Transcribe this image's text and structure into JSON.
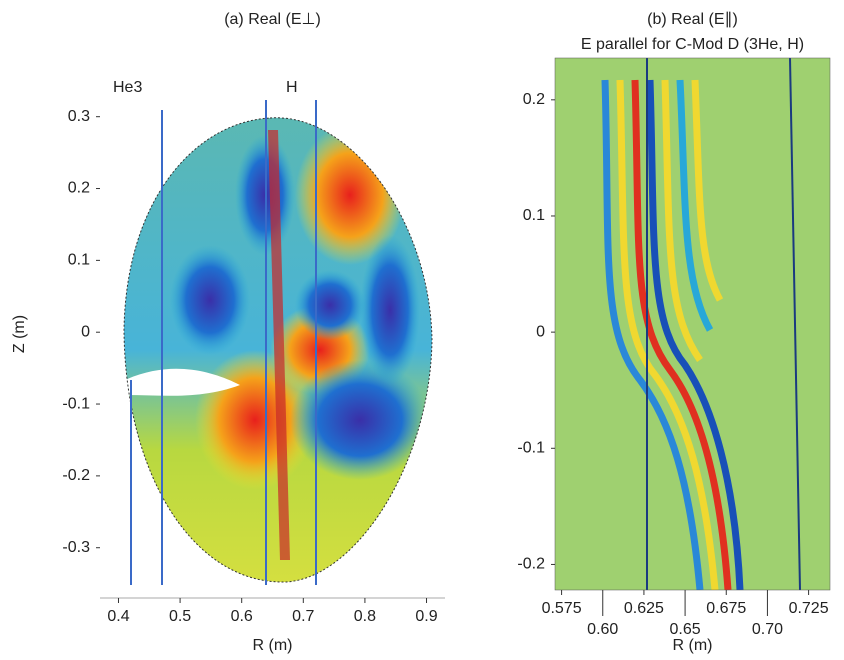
{
  "chart_data": [
    {
      "type": "image",
      "title": "(a) Real (E⊥)",
      "xlabel": "R (m)",
      "ylabel": "Z (m)",
      "xlim": [
        0.37,
        0.93
      ],
      "ylim": [
        -0.37,
        0.365
      ],
      "xticks": [
        0.4,
        0.5,
        0.6,
        0.7,
        0.8,
        0.9
      ],
      "yticks": [
        -0.3,
        -0.2,
        -0.1,
        0,
        0.1,
        0.2,
        0.3
      ],
      "annotations": [
        "He3",
        "H"
      ]
    },
    {
      "type": "image",
      "title": "(b) Real (E∥)",
      "subtitle": "E parallel for C-Mod D (3He, H)",
      "xlabel": "R (m)",
      "xlim": [
        0.571,
        0.738
      ],
      "ylim": [
        -0.222,
        0.236
      ],
      "xticks": [
        0.575,
        {
          "value": 0.6,
          "label": "0.60"
        },
        0.625,
        0.65,
        0.675,
        {
          "value": 0.7,
          "label": "0.70"
        },
        0.725
      ],
      "yticks": [
        -0.2,
        -0.1,
        0,
        0.1,
        0.2
      ]
    }
  ]
}
